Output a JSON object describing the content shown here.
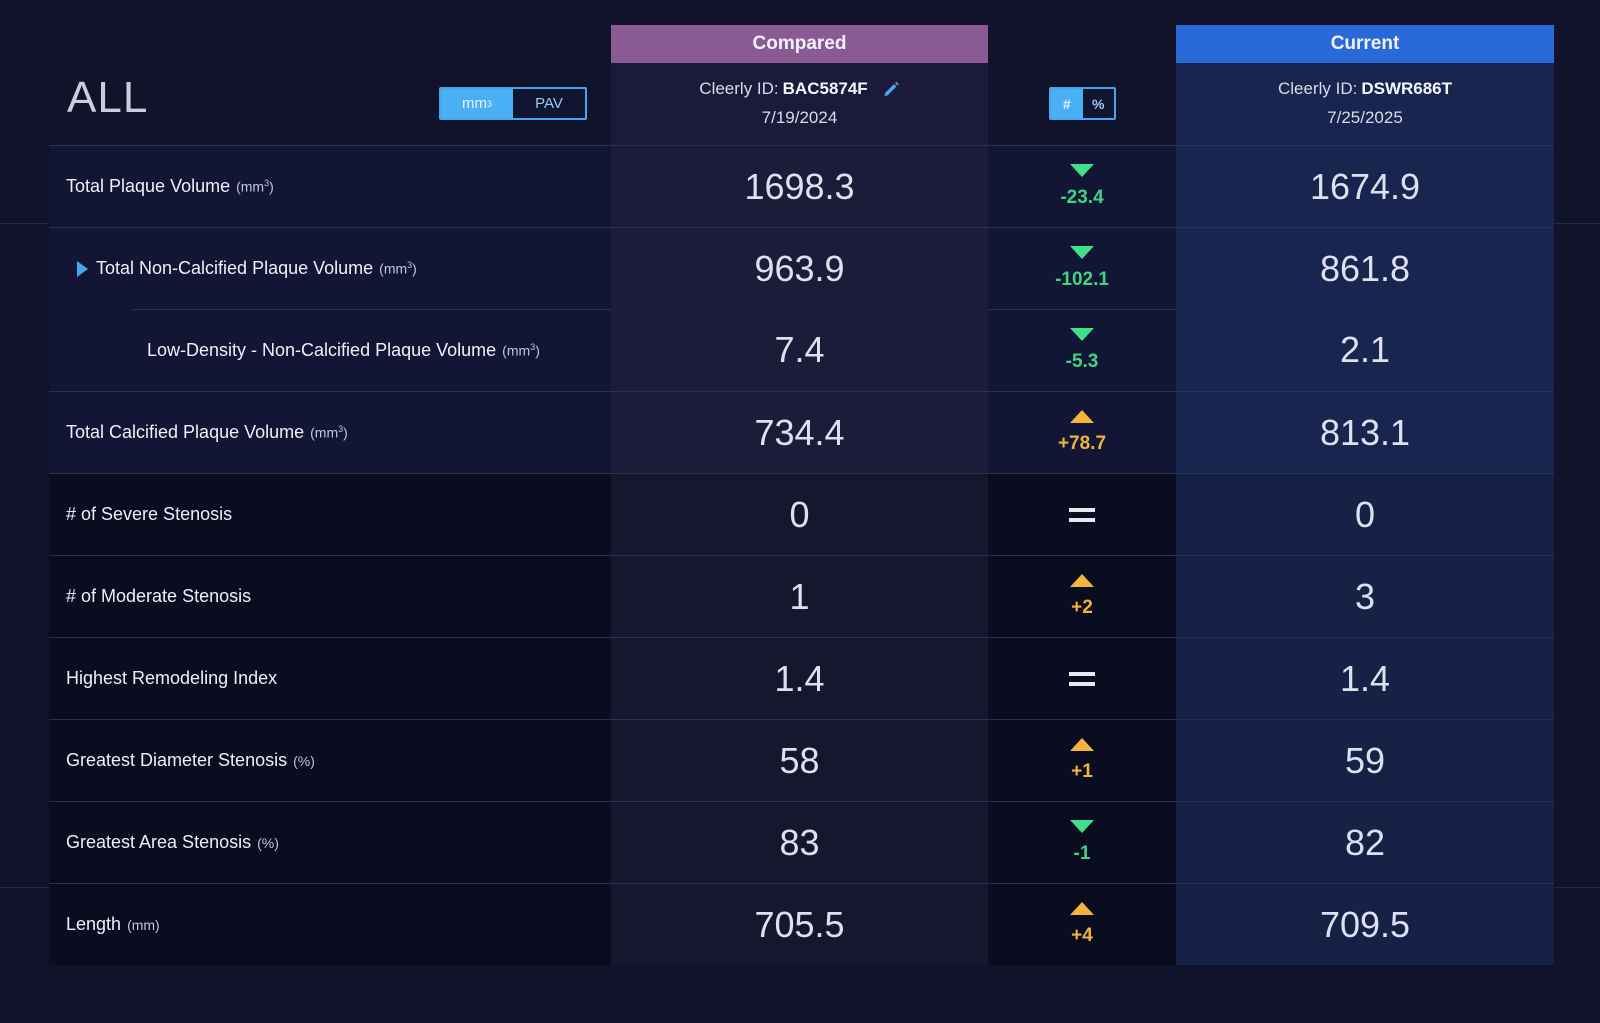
{
  "header": {
    "title": "ALL",
    "unit_toggle": {
      "option_1": "mm",
      "option_1_sup": "3",
      "option_2": "PAV",
      "selected": "mm3"
    },
    "mode_toggle": {
      "option_1": "#",
      "option_2": "%",
      "selected": "#"
    },
    "compared": {
      "tab": "Compared",
      "id_label": "Cleerly ID:",
      "id": "BAC5874F",
      "date": "7/19/2024"
    },
    "current": {
      "tab": "Current",
      "id_label": "Cleerly ID:",
      "id": "DSWR686T",
      "date": "7/25/2025"
    }
  },
  "rows": [
    {
      "label": "Total Plaque Volume",
      "unit": "(mm",
      "unit_sup": "3",
      "unit_close": ")",
      "compared": "1698.3",
      "delta": "-23.4",
      "direction": "down",
      "current": "1674.9"
    },
    {
      "label": "Total Non-Calcified Plaque Volume",
      "unit": "(mm",
      "unit_sup": "3",
      "unit_close": ")",
      "compared": "963.9",
      "delta": "-102.1",
      "direction": "down",
      "current": "861.8"
    },
    {
      "label": "Low-Density - Non-Calcified Plaque Volume",
      "unit": "(mm",
      "unit_sup": "3",
      "unit_close": ")",
      "compared": "7.4",
      "delta": "-5.3",
      "direction": "down",
      "current": "2.1"
    },
    {
      "label": "Total Calcified Plaque Volume",
      "unit": "(mm",
      "unit_sup": "3",
      "unit_close": ")",
      "compared": "734.4",
      "delta": "+78.7",
      "direction": "up",
      "current": "813.1"
    },
    {
      "label": "# of Severe Stenosis",
      "compared": "0",
      "delta": "",
      "direction": "equal",
      "current": "0"
    },
    {
      "label": "# of Moderate Stenosis",
      "compared": "1",
      "delta": "+2",
      "direction": "up",
      "current": "3"
    },
    {
      "label": "Highest Remodeling Index",
      "compared": "1.4",
      "delta": "",
      "direction": "equal",
      "current": "1.4"
    },
    {
      "label": "Greatest Diameter Stenosis",
      "unit": "(%)",
      "compared": "58",
      "delta": "+1",
      "direction": "up",
      "current": "59"
    },
    {
      "label": "Greatest Area Stenosis",
      "unit": "(%)",
      "compared": "83",
      "delta": "-1",
      "direction": "down",
      "current": "82"
    },
    {
      "label": "Length",
      "unit": "(mm)",
      "compared": "705.5",
      "delta": "+4",
      "direction": "up",
      "current": "709.5"
    }
  ]
}
